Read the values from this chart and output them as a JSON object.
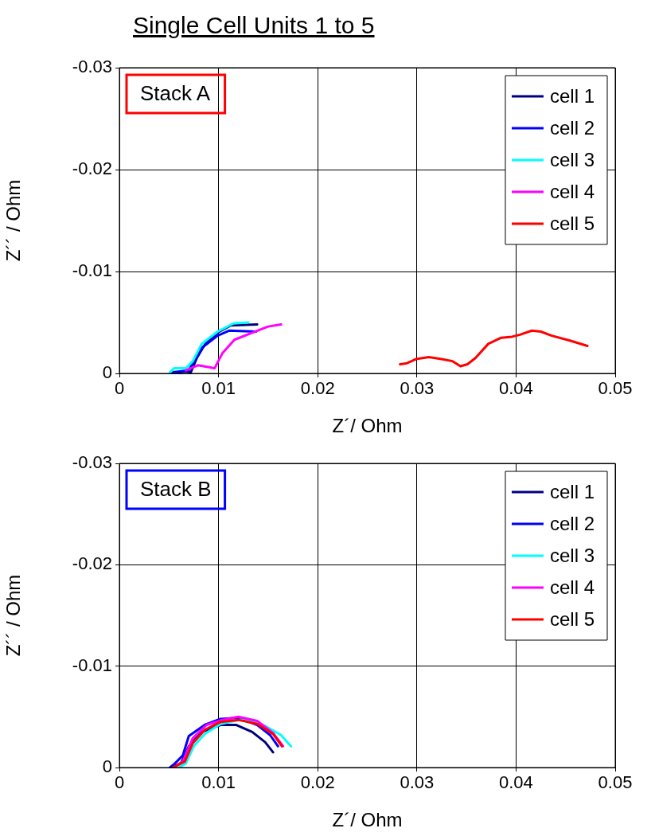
{
  "chart_data": [
    {
      "type": "line",
      "title": "Single Cell Units 1 to 5",
      "xlabel": "Z´/ Ohm",
      "ylabel": "Z´´ / Ohm",
      "annotations": [
        "Stack A"
      ],
      "xlim": [
        0,
        0.05
      ],
      "xticks": [
        0,
        0.01,
        0.02,
        0.03,
        0.04,
        0.05
      ],
      "ylim": [
        0,
        -0.03
      ],
      "yticks": [
        0,
        -0.01,
        -0.02,
        -0.03
      ],
      "grid": true,
      "legend": "top right",
      "marker": "none",
      "line_style": "solid",
      "series": [
        {
          "name": "cell 1",
          "color": "#00007f",
          "x": [
            0.0053,
            0.0067,
            0.0072,
            0.0078,
            0.0086,
            0.0099,
            0.0112,
            0.0139
          ],
          "values": [
            0,
            -0.0002,
            -0.0001,
            -0.0015,
            -0.0028,
            -0.004,
            -0.0047,
            -0.0048
          ]
        },
        {
          "name": "cell 2",
          "color": "#0000ff",
          "x": [
            0.0052,
            0.007,
            0.0075,
            0.0083,
            0.0099,
            0.0111,
            0.0138
          ],
          "values": [
            -0.0001,
            -0.0003,
            -0.0012,
            -0.0025,
            -0.0037,
            -0.0042,
            -0.0041
          ]
        },
        {
          "name": "cell 3",
          "color": "#00ffff",
          "x": [
            0.0051,
            0.0055,
            0.0067,
            0.0074,
            0.0083,
            0.0099,
            0.0115,
            0.013
          ],
          "values": [
            -0.0001,
            -0.0005,
            -0.0005,
            -0.0012,
            -0.0029,
            -0.0041,
            -0.0049,
            -0.005
          ]
        },
        {
          "name": "cell 4",
          "color": "#ff00ff",
          "x": [
            0.0067,
            0.0079,
            0.0091,
            0.0096,
            0.0104,
            0.0116,
            0.0134,
            0.015,
            0.0163
          ],
          "values": [
            -0.0003,
            -0.0008,
            -0.0006,
            -0.0005,
            -0.002,
            -0.0033,
            -0.004,
            -0.0046,
            -0.0048
          ]
        },
        {
          "name": "cell 5",
          "color": "#ff0000",
          "x": [
            0.0283,
            0.029,
            0.0299,
            0.0312,
            0.0325,
            0.0336,
            0.0344,
            0.0351,
            0.0359,
            0.0372,
            0.0385,
            0.0396,
            0.0404,
            0.0416,
            0.0425,
            0.0436,
            0.0455,
            0.0472
          ],
          "values": [
            -0.0009,
            -0.001,
            -0.0014,
            -0.0016,
            -0.0014,
            -0.0012,
            -0.0007,
            -0.0009,
            -0.0015,
            -0.0029,
            -0.0035,
            -0.0036,
            -0.0038,
            -0.0042,
            -0.0041,
            -0.0037,
            -0.0032,
            -0.0027
          ]
        }
      ]
    },
    {
      "type": "line",
      "xlabel": "Z´/ Ohm",
      "ylabel": "Z´´ / Ohm",
      "annotations": [
        "Stack B"
      ],
      "xlim": [
        0,
        0.05
      ],
      "xticks": [
        0,
        0.01,
        0.02,
        0.03,
        0.04,
        0.05
      ],
      "ylim": [
        0,
        -0.03
      ],
      "yticks": [
        0,
        -0.01,
        -0.02,
        -0.03
      ],
      "grid": true,
      "legend": "top right",
      "marker": "none",
      "line_style": "solid",
      "series": [
        {
          "name": "cell 1",
          "color": "#00007f",
          "x": [
            0.0052,
            0.0062,
            0.007,
            0.0083,
            0.0102,
            0.0118,
            0.0134,
            0.0147,
            0.0155
          ],
          "values": [
            0,
            -0.0004,
            -0.0021,
            -0.0035,
            -0.0042,
            -0.0042,
            -0.0035,
            -0.0025,
            -0.0015
          ]
        },
        {
          "name": "cell 2",
          "color": "#0000ff",
          "x": [
            0.0051,
            0.0056,
            0.0064,
            0.007,
            0.0086,
            0.0102,
            0.012,
            0.0139,
            0.0152,
            0.016
          ],
          "values": [
            0,
            -0.0004,
            -0.0012,
            -0.0031,
            -0.0042,
            -0.0048,
            -0.0049,
            -0.0042,
            -0.0032,
            -0.0021
          ]
        },
        {
          "name": "cell 3",
          "color": "#00ffff",
          "x": [
            0.006,
            0.0067,
            0.0075,
            0.0086,
            0.0102,
            0.0126,
            0.0147,
            0.0163,
            0.0173
          ],
          "values": [
            0,
            -0.0004,
            -0.0021,
            -0.0033,
            -0.0043,
            -0.0048,
            -0.0041,
            -0.0032,
            -0.0021
          ]
        },
        {
          "name": "cell 4",
          "color": "#ff00ff",
          "x": [
            0.0055,
            0.0064,
            0.0074,
            0.0088,
            0.0104,
            0.012,
            0.0139,
            0.0155,
            0.0165
          ],
          "values": [
            0,
            -0.0006,
            -0.0029,
            -0.0042,
            -0.0047,
            -0.005,
            -0.0046,
            -0.0034,
            -0.0021
          ]
        },
        {
          "name": "cell 5",
          "color": "#ff0000",
          "x": [
            0.0054,
            0.0066,
            0.0074,
            0.0086,
            0.0102,
            0.012,
            0.0139,
            0.0155,
            0.0164
          ],
          "values": [
            0,
            -0.0006,
            -0.0024,
            -0.0037,
            -0.0045,
            -0.0047,
            -0.0043,
            -0.0033,
            -0.0021
          ]
        }
      ]
    }
  ]
}
